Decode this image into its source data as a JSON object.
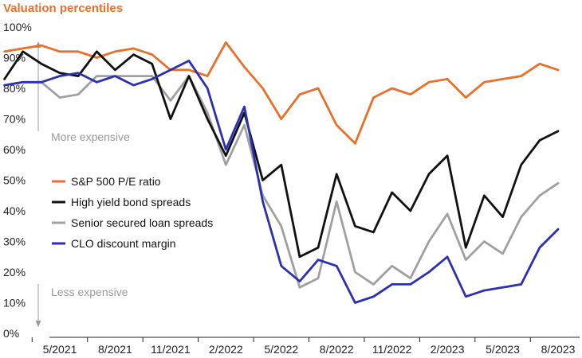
{
  "chart_data": {
    "type": "line",
    "title": "Valuation percentiles",
    "ylim": [
      0,
      100
    ],
    "yticks": [
      "100%",
      "90%",
      "80%",
      "70%",
      "60%",
      "50%",
      "40%",
      "30%",
      "20%",
      "10%",
      "0%"
    ],
    "xticks": [
      "5/2021",
      "8/2021",
      "11/2021",
      "2/2022",
      "5/2022",
      "8/2022",
      "11/2022",
      "2/2023",
      "5/2023",
      "8/2023"
    ],
    "annotations": {
      "top": "More expensive",
      "bottom": "Less expensive"
    },
    "legend_position": "left",
    "x": [
      "2/2021",
      "3/2021",
      "4/2021",
      "5/2021",
      "6/2021",
      "7/2021",
      "8/2021",
      "9/2021",
      "10/2021",
      "11/2021",
      "12/2021",
      "1/2022",
      "2/2022",
      "3/2022",
      "4/2022",
      "5/2022",
      "6/2022",
      "7/2022",
      "8/2022",
      "9/2022",
      "10/2022",
      "11/2022",
      "12/2022",
      "1/2023",
      "2/2023",
      "3/2023",
      "4/2023",
      "5/2023",
      "6/2023",
      "7/2023",
      "8/2023"
    ],
    "series": [
      {
        "name": "S&P 500 P/E ratio",
        "color": "#e8702a",
        "values": [
          92,
          93,
          94,
          92,
          92,
          90,
          92,
          93,
          91,
          86,
          86,
          84,
          95,
          87,
          80,
          70,
          78,
          80,
          68,
          62,
          77,
          80,
          78,
          82,
          83,
          77,
          82,
          83,
          84,
          88,
          86
        ]
      },
      {
        "name": "High yield bond spreads",
        "color": "#111111",
        "values": [
          83,
          92,
          88,
          85,
          84,
          92,
          86,
          91,
          88,
          70,
          84,
          70,
          58,
          72,
          50,
          55,
          25,
          28,
          52,
          35,
          33,
          46,
          40,
          52,
          58,
          28,
          45,
          38,
          55,
          63,
          66
        ]
      },
      {
        "name": "Senior secured loan spreads",
        "color": "#a0a0a0",
        "values": [
          81,
          82,
          82,
          77,
          78,
          84,
          84,
          84,
          84,
          76,
          84,
          72,
          55,
          68,
          45,
          35,
          15,
          18,
          43,
          20,
          16,
          22,
          18,
          30,
          39,
          24,
          30,
          26,
          38,
          45,
          49
        ]
      },
      {
        "name": "CLO discount margin",
        "color": "#2b2fb0",
        "values": [
          81,
          82,
          82,
          84,
          85,
          82,
          84,
          81,
          83,
          86,
          89,
          80,
          60,
          74,
          43,
          22,
          17,
          24,
          22,
          10,
          12,
          16,
          16,
          20,
          25,
          12,
          14,
          15,
          16,
          28,
          34
        ]
      }
    ]
  }
}
